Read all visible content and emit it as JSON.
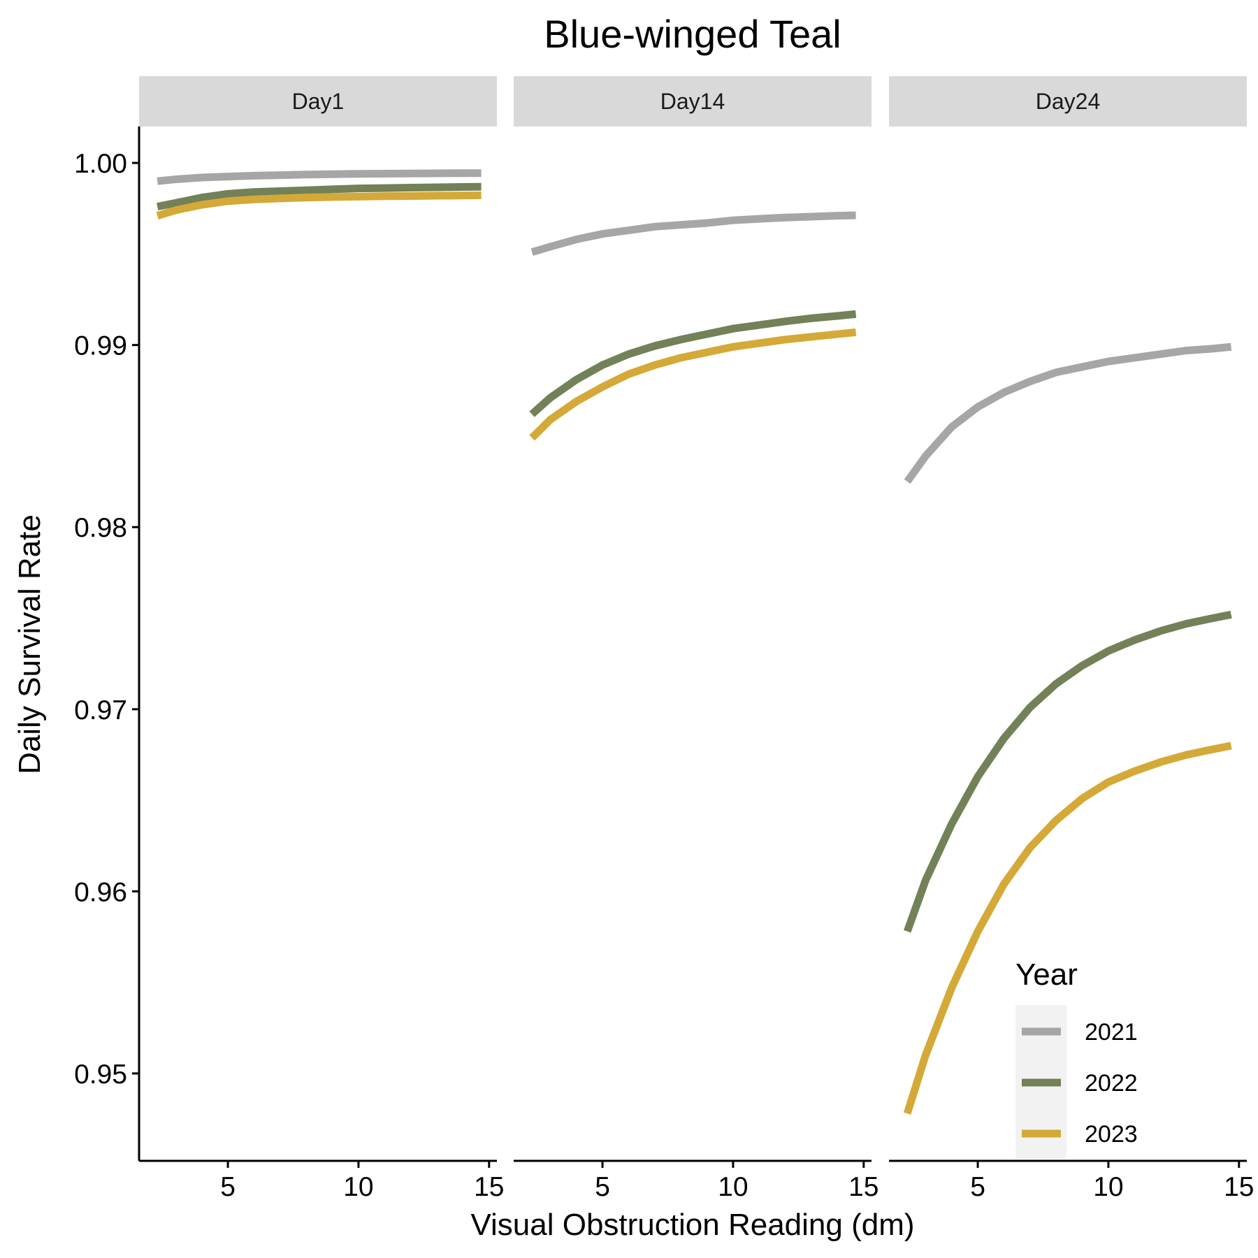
{
  "colors": {
    "2021": "#a6a6a6",
    "2022": "#728157",
    "2023": "#d4a938",
    "strip_bg": "#d9d9d9",
    "legend_key_bg": "#f2f2f2"
  },
  "chart_data": {
    "type": "line",
    "title": "Blue-winged Teal",
    "xlabel": "Visual Obstruction Reading (dm)",
    "ylabel": "Daily Survival Rate",
    "xlim": [
      1.6,
      15.3
    ],
    "ylim": [
      0.9452,
      1.002
    ],
    "xticks": [
      5,
      10,
      15
    ],
    "yticks": [
      0.95,
      0.96,
      0.97,
      0.98,
      0.99,
      1.0
    ],
    "ytick_labels": [
      "0.95",
      "0.96",
      "0.97",
      "0.98",
      "0.99",
      "1.00"
    ],
    "grid": false,
    "legend": {
      "title": "Year",
      "placement": "bottom-right",
      "entries": [
        "2021",
        "2022",
        "2023"
      ]
    },
    "facets": [
      {
        "label": "Day1",
        "x": [
          2.3,
          3,
          4,
          5,
          6,
          7,
          8,
          9,
          10,
          11,
          12,
          13,
          14,
          14.7
        ],
        "series": [
          {
            "name": "2021",
            "values": [
              0.999,
              0.9991,
              0.9992,
              0.99925,
              0.9993,
              0.99933,
              0.99936,
              0.99938,
              0.9994,
              0.99941,
              0.99942,
              0.99943,
              0.99944,
              0.99944
            ]
          },
          {
            "name": "2022",
            "values": [
              0.9976,
              0.9978,
              0.9981,
              0.9983,
              0.9984,
              0.99845,
              0.9985,
              0.99855,
              0.9986,
              0.99862,
              0.99864,
              0.99866,
              0.99868,
              0.99869
            ]
          },
          {
            "name": "2023",
            "values": [
              0.9971,
              0.9974,
              0.9977,
              0.9979,
              0.998,
              0.99805,
              0.9981,
              0.99813,
              0.99815,
              0.99817,
              0.99818,
              0.9982,
              0.99821,
              0.99822
            ]
          }
        ]
      },
      {
        "label": "Day14",
        "x": [
          2.3,
          3,
          4,
          5,
          6,
          7,
          8,
          9,
          10,
          11,
          12,
          13,
          14,
          14.7
        ],
        "series": [
          {
            "name": "2021",
            "values": [
              0.9951,
              0.9954,
              0.9958,
              0.9961,
              0.9963,
              0.9965,
              0.9966,
              0.9967,
              0.99685,
              0.99693,
              0.997,
              0.99705,
              0.9971,
              0.99712
            ]
          },
          {
            "name": "2022",
            "values": [
              0.9862,
              0.9871,
              0.9881,
              0.9889,
              0.9895,
              0.98995,
              0.9903,
              0.9906,
              0.9909,
              0.9911,
              0.9913,
              0.99147,
              0.9916,
              0.9917
            ]
          },
          {
            "name": "2023",
            "values": [
              0.9849,
              0.9859,
              0.9869,
              0.9877,
              0.9884,
              0.9889,
              0.9893,
              0.9896,
              0.9899,
              0.9901,
              0.9903,
              0.99045,
              0.9906,
              0.9907
            ]
          }
        ]
      },
      {
        "label": "Day24",
        "x": [
          2.3,
          3,
          4,
          5,
          6,
          7,
          8,
          9,
          10,
          11,
          12,
          13,
          14,
          14.7
        ],
        "series": [
          {
            "name": "2021",
            "values": [
              0.9825,
              0.9839,
              0.9855,
              0.9866,
              0.9874,
              0.988,
              0.9885,
              0.9888,
              0.9891,
              0.9893,
              0.9895,
              0.9897,
              0.9898,
              0.9899
            ]
          },
          {
            "name": "2022",
            "values": [
              0.9578,
              0.9606,
              0.9637,
              0.9663,
              0.9684,
              0.9701,
              0.9714,
              0.9724,
              0.9732,
              0.9738,
              0.9743,
              0.9747,
              0.975,
              0.9752
            ]
          },
          {
            "name": "2023",
            "values": [
              0.9478,
              0.951,
              0.9547,
              0.9578,
              0.9604,
              0.9624,
              0.9639,
              0.9651,
              0.966,
              0.9666,
              0.9671,
              0.9675,
              0.9678,
              0.968
            ]
          }
        ]
      }
    ]
  }
}
